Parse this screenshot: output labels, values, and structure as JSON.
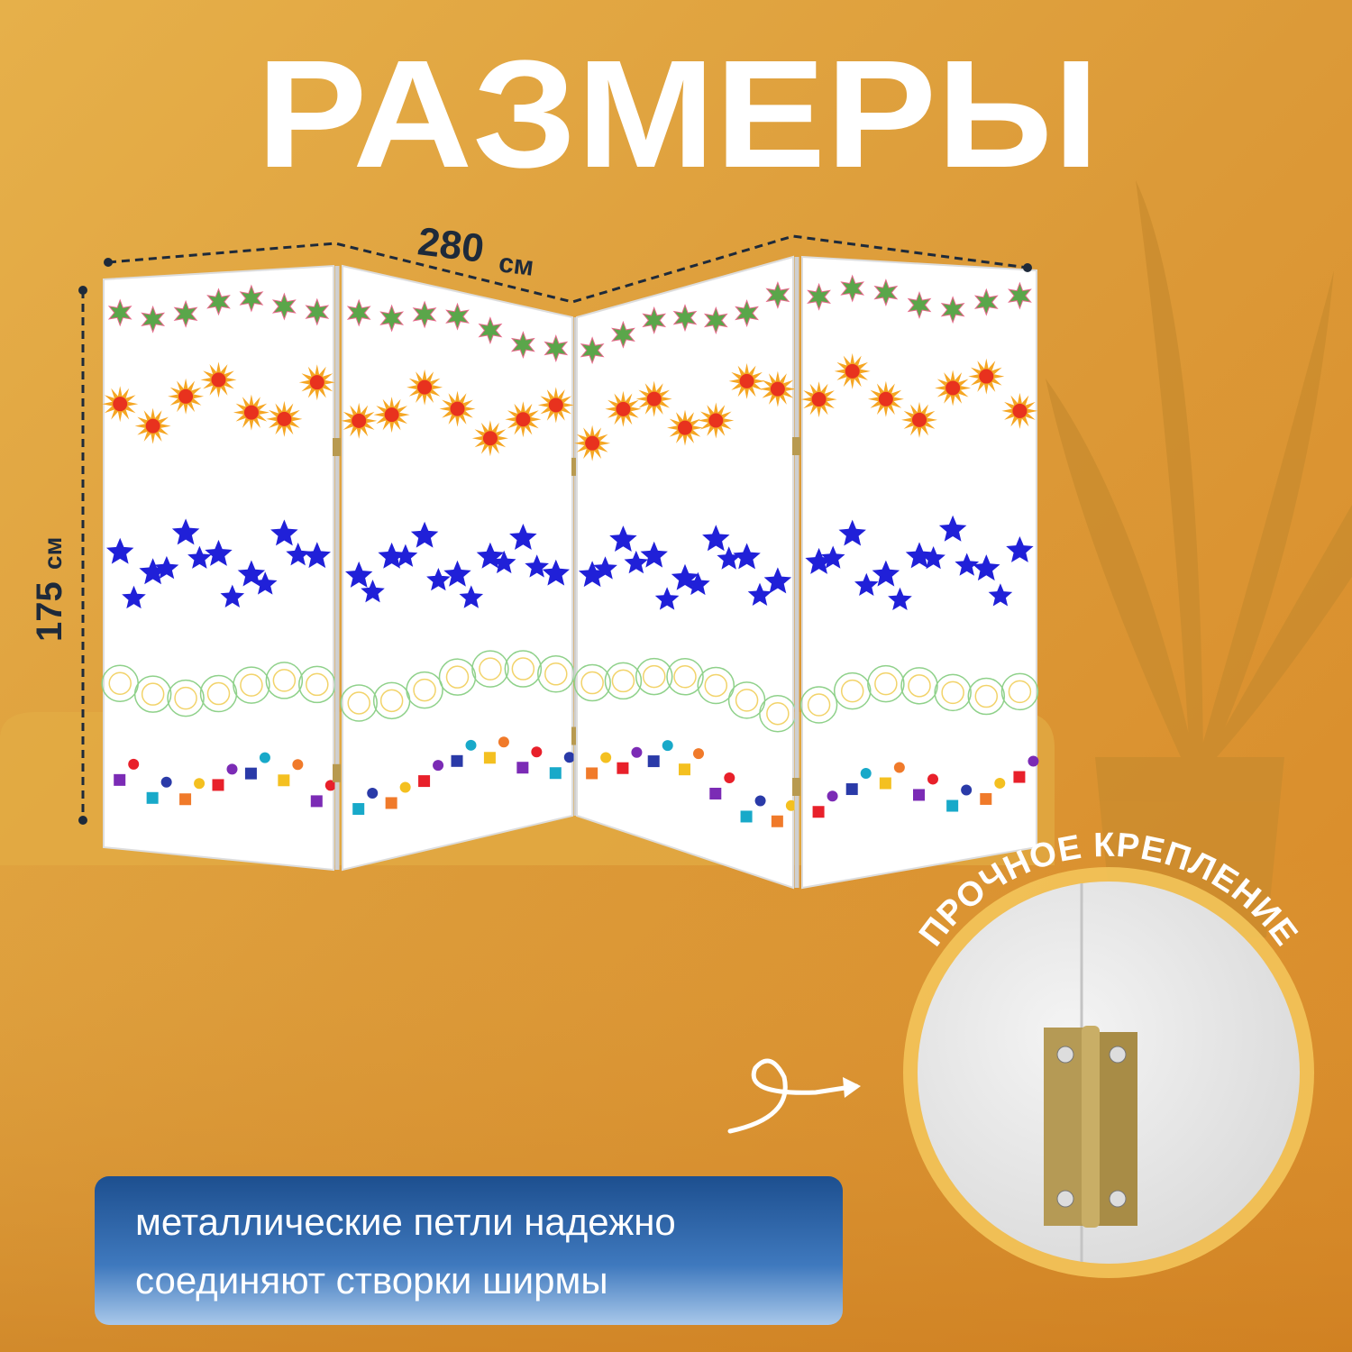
{
  "title": "РАЗМЕРЫ",
  "dimensions": {
    "width": {
      "value": 280,
      "unit": "см"
    },
    "height": {
      "value": 175,
      "unit": "см"
    }
  },
  "badge": "ПРОЧНОЕ КРЕПЛЕНИЕ",
  "caption": [
    "металлические петли надежно",
    "соединяют створки ширмы"
  ]
}
